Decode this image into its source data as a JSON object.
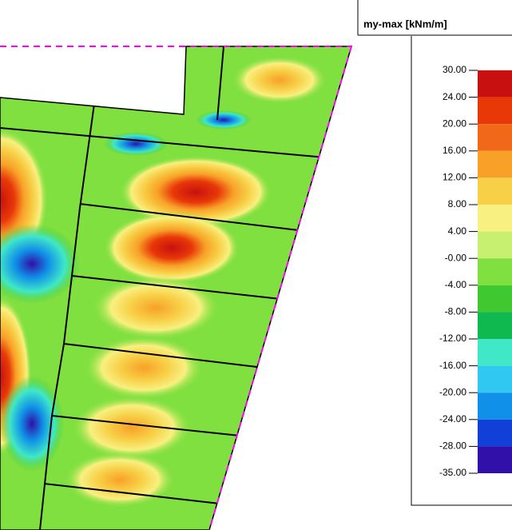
{
  "legend": {
    "title": "my-max [kNm/m]",
    "labels": [
      "30.00",
      "24.00",
      "20.00",
      "16.00",
      "12.00",
      "8.00",
      "4.00",
      "-0.00",
      "-4.00",
      "-8.00",
      "-12.00",
      "-16.00",
      "-20.00",
      "-24.00",
      "-28.00",
      "-35.00"
    ],
    "colors": [
      "#c81010",
      "#e83808",
      "#f06818",
      "#f8a028",
      "#f8d048",
      "#f8f080",
      "#c8f070",
      "#80e040",
      "#40c830",
      "#10b850",
      "#40e8c8",
      "#30c8f0",
      "#1090e8",
      "#1040d8",
      "#3010a8"
    ]
  }
}
